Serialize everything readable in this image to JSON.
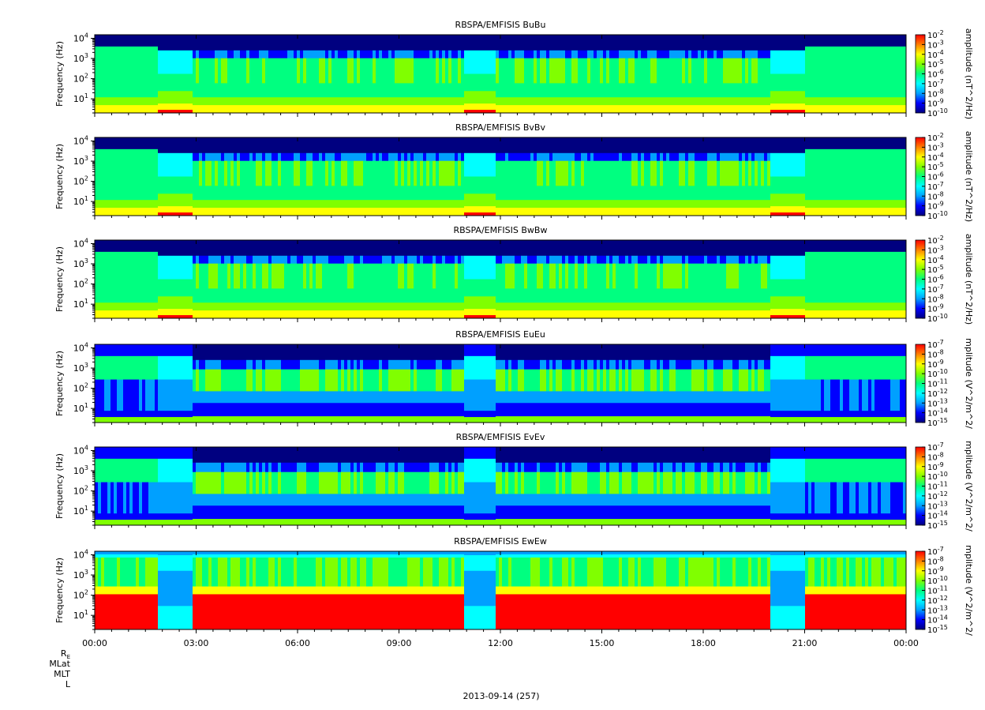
{
  "chart_data": {
    "type": "heatmap",
    "date_label": "2013-09-14 (257)",
    "x_ticks": [
      "00:00",
      "03:00",
      "06:00",
      "09:00",
      "12:00",
      "15:00",
      "18:00",
      "21:00",
      "00:00"
    ],
    "x_range_hours": [
      0,
      24
    ],
    "ephemeris_labels": [
      "R",
      "MLat",
      "MLT",
      "L"
    ],
    "ephemeris_subscript": "E",
    "y_scale": "log",
    "y_range_hz": [
      2,
      15000
    ],
    "y_ticks": [
      {
        "base": "10",
        "exp": "4",
        "value": 10000
      },
      {
        "base": "10",
        "exp": "3",
        "value": 1000
      },
      {
        "base": "10",
        "exp": "2",
        "value": 100
      },
      {
        "base": "10",
        "exp": "1",
        "value": 10
      }
    ],
    "colormap": [
      "#000080",
      "#0000ff",
      "#00a0ff",
      "#00ffff",
      "#00ff80",
      "#80ff00",
      "#ffff00",
      "#ff8000",
      "#ff0000"
    ],
    "panels": [
      {
        "title": "RBSPA/EMFISIS  BuBu",
        "ylabel": "Frequency (Hz)",
        "cb_label": "amplitude (nT^2/Hz)",
        "cb_ticks": [
          {
            "base": "10",
            "exp": "-2"
          },
          {
            "base": "10",
            "exp": "-3"
          },
          {
            "base": "10",
            "exp": "-4"
          },
          {
            "base": "10",
            "exp": "-5"
          },
          {
            "base": "10",
            "exp": "-6"
          },
          {
            "base": "10",
            "exp": "-7"
          },
          {
            "base": "10",
            "exp": "-8"
          },
          {
            "base": "10",
            "exp": "-9"
          },
          {
            "base": "10",
            "exp": "-10"
          }
        ],
        "kind": "B"
      },
      {
        "title": "RBSPA/EMFISIS  BvBv",
        "ylabel": "Frequency (Hz)",
        "cb_label": "amplitude (nT^2/Hz)",
        "cb_ticks": [
          {
            "base": "10",
            "exp": "-2"
          },
          {
            "base": "10",
            "exp": "-3"
          },
          {
            "base": "10",
            "exp": "-4"
          },
          {
            "base": "10",
            "exp": "-5"
          },
          {
            "base": "10",
            "exp": "-6"
          },
          {
            "base": "10",
            "exp": "-7"
          },
          {
            "base": "10",
            "exp": "-8"
          },
          {
            "base": "10",
            "exp": "-9"
          },
          {
            "base": "10",
            "exp": "-10"
          }
        ],
        "kind": "B"
      },
      {
        "title": "RBSPA/EMFISIS  BwBw",
        "ylabel": "Frequency (Hz)",
        "cb_label": "amplitude (nT^2/Hz)",
        "cb_ticks": [
          {
            "base": "10",
            "exp": "-2"
          },
          {
            "base": "10",
            "exp": "-3"
          },
          {
            "base": "10",
            "exp": "-4"
          },
          {
            "base": "10",
            "exp": "-5"
          },
          {
            "base": "10",
            "exp": "-6"
          },
          {
            "base": "10",
            "exp": "-7"
          },
          {
            "base": "10",
            "exp": "-8"
          },
          {
            "base": "10",
            "exp": "-9"
          },
          {
            "base": "10",
            "exp": "-10"
          }
        ],
        "kind": "Bw"
      },
      {
        "title": "RBSPA/EMFISIS  EuEu",
        "ylabel": "Frequency (Hz)",
        "cb_label": "mplitude (V^2/m^2/",
        "cb_ticks": [
          {
            "base": "10",
            "exp": "-7"
          },
          {
            "base": "10",
            "exp": "-8"
          },
          {
            "base": "10",
            "exp": "-9"
          },
          {
            "base": "10",
            "exp": "-10"
          },
          {
            "base": "10",
            "exp": "-11"
          },
          {
            "base": "10",
            "exp": "-12"
          },
          {
            "base": "10",
            "exp": "-13"
          },
          {
            "base": "10",
            "exp": "-14"
          },
          {
            "base": "10",
            "exp": "-15"
          }
        ],
        "kind": "E"
      },
      {
        "title": "RBSPA/EMFISIS  EvEv",
        "ylabel": "Frequency (Hz)",
        "cb_label": "mplitude (V^2/m^2/",
        "cb_ticks": [
          {
            "base": "10",
            "exp": "-7"
          },
          {
            "base": "10",
            "exp": "-8"
          },
          {
            "base": "10",
            "exp": "-9"
          },
          {
            "base": "10",
            "exp": "-10"
          },
          {
            "base": "10",
            "exp": "-11"
          },
          {
            "base": "10",
            "exp": "-12"
          },
          {
            "base": "10",
            "exp": "-13"
          },
          {
            "base": "10",
            "exp": "-14"
          },
          {
            "base": "10",
            "exp": "-15"
          }
        ],
        "kind": "E"
      },
      {
        "title": "RBSPA/EMFISIS  EwEw",
        "ylabel": "Frequency (Hz)",
        "cb_label": "mplitude (V^2/m^2/",
        "cb_ticks": [
          {
            "base": "10",
            "exp": "-7"
          },
          {
            "base": "10",
            "exp": "-8"
          },
          {
            "base": "10",
            "exp": "-9"
          },
          {
            "base": "10",
            "exp": "-10"
          },
          {
            "base": "10",
            "exp": "-11"
          },
          {
            "base": "10",
            "exp": "-12"
          },
          {
            "base": "10",
            "exp": "-13"
          },
          {
            "base": "10",
            "exp": "-14"
          },
          {
            "base": "10",
            "exp": "-15"
          }
        ],
        "kind": "Ew"
      }
    ]
  }
}
